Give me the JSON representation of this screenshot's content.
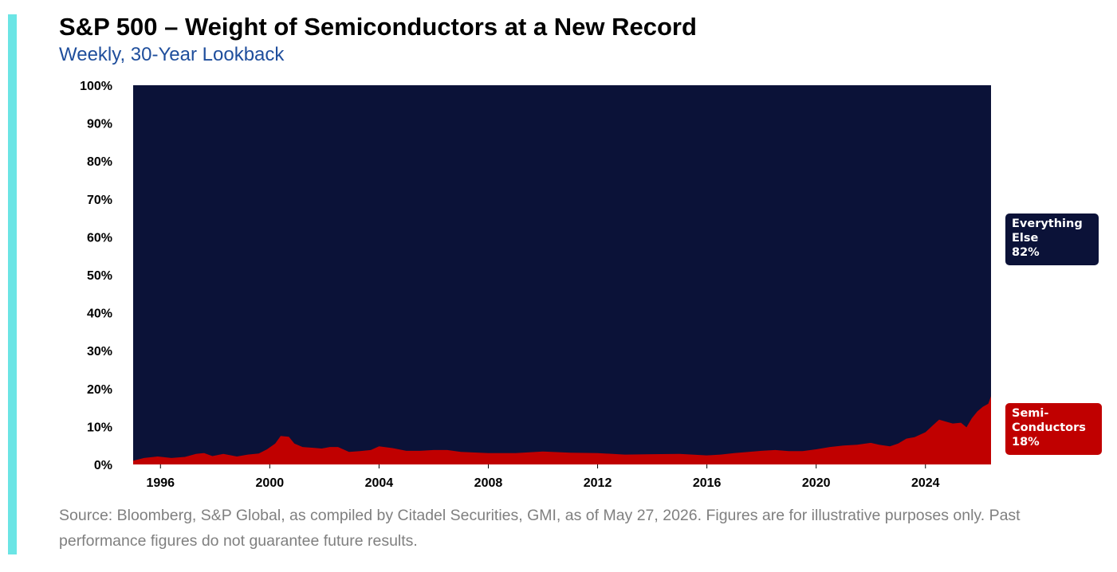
{
  "title": "S&P 500 – Weight of Semiconductors at a New Record",
  "subtitle": "Weekly, 30-Year Lookback",
  "source": "Source: Bloomberg, S&P Global, as compiled by Citadel Securities, GMI, as of May 27, 2026. Figures are for illustrative purposes only. Past performance figures do not guarantee future results.",
  "colors": {
    "accent_bar": "#6be5e5",
    "subtitle": "#1f4e9c",
    "everything_else": "#0b1238",
    "semiconductors": "#c00000"
  },
  "callouts": {
    "everything_else": [
      "Everything",
      "Else",
      "82%"
    ],
    "semiconductors": [
      "Semi-",
      "Conductors",
      "18%"
    ]
  },
  "chart_data": {
    "type": "area",
    "stacked": true,
    "normalized": true,
    "title": "S&P 500 – Weight of Semiconductors at a New Record",
    "subtitle": "Weekly, 30-Year Lookback",
    "xlabel": "",
    "ylabel": "",
    "xlim": [
      1995.0,
      2026.4
    ],
    "ylim": [
      0,
      100
    ],
    "x_ticks": [
      1996,
      2000,
      2004,
      2008,
      2012,
      2016,
      2020,
      2024
    ],
    "y_ticks": [
      0,
      10,
      20,
      30,
      40,
      50,
      60,
      70,
      80,
      90,
      100
    ],
    "y_tick_labels": [
      "0%",
      "10%",
      "20%",
      "30%",
      "40%",
      "50%",
      "60%",
      "70%",
      "80%",
      "90%",
      "100%"
    ],
    "grid": false,
    "legend": "right-side callout labels",
    "x": [
      1995.0,
      1995.4,
      1995.9,
      1996.4,
      1996.9,
      1997.3,
      1997.6,
      1997.9,
      1998.3,
      1998.8,
      1999.2,
      1999.6,
      1999.9,
      2000.2,
      2000.4,
      2000.7,
      2000.9,
      2001.2,
      2001.6,
      2001.9,
      2002.2,
      2002.5,
      2002.9,
      2003.3,
      2003.7,
      2004.0,
      2004.5,
      2005.0,
      2005.5,
      2006.0,
      2006.5,
      2007.0,
      2008.0,
      2009.0,
      2009.5,
      2010.0,
      2011.0,
      2012.0,
      2013.0,
      2014.0,
      2015.0,
      2016.0,
      2016.5,
      2017.0,
      2018.0,
      2018.5,
      2019.0,
      2019.5,
      2020.0,
      2020.5,
      2021.0,
      2021.5,
      2022.0,
      2022.3,
      2022.7,
      2023.0,
      2023.3,
      2023.6,
      2024.0,
      2024.3,
      2024.5,
      2024.8,
      2025.0,
      2025.3,
      2025.5,
      2025.7,
      2025.9,
      2026.1,
      2026.3,
      2026.4
    ],
    "series": [
      {
        "name": "Semi-Conductors",
        "values": [
          1.0,
          1.7,
          2.1,
          1.7,
          2.0,
          2.8,
          3.0,
          2.2,
          2.8,
          2.1,
          2.6,
          2.9,
          4.0,
          5.5,
          7.5,
          7.3,
          5.5,
          4.6,
          4.4,
          4.2,
          4.6,
          4.6,
          3.3,
          3.5,
          3.8,
          4.8,
          4.3,
          3.6,
          3.6,
          3.8,
          3.8,
          3.3,
          3.0,
          3.0,
          3.2,
          3.4,
          3.1,
          3.0,
          2.6,
          2.7,
          2.8,
          2.4,
          2.6,
          3.0,
          3.6,
          3.8,
          3.5,
          3.5,
          4.0,
          4.6,
          5.0,
          5.2,
          5.7,
          5.2,
          4.8,
          5.5,
          6.8,
          7.2,
          8.5,
          10.5,
          11.8,
          11.2,
          10.8,
          11.0,
          9.8,
          12.2,
          14.0,
          15.2,
          16.0,
          18.0
        ]
      },
      {
        "name": "Everything Else",
        "values": [
          99.0,
          98.3,
          97.9,
          98.3,
          98.0,
          97.2,
          97.0,
          97.8,
          97.2,
          97.9,
          97.4,
          97.1,
          96.0,
          94.5,
          92.5,
          92.7,
          94.5,
          95.4,
          95.6,
          95.8,
          95.4,
          95.4,
          96.7,
          96.5,
          96.2,
          95.2,
          95.7,
          96.4,
          96.4,
          96.2,
          96.2,
          96.7,
          97.0,
          97.0,
          96.8,
          96.6,
          96.9,
          97.0,
          97.4,
          97.3,
          97.2,
          97.6,
          97.4,
          97.0,
          96.4,
          96.2,
          96.5,
          96.5,
          96.0,
          95.4,
          95.0,
          94.8,
          94.3,
          94.8,
          95.2,
          94.5,
          93.2,
          92.8,
          91.5,
          89.5,
          88.2,
          88.8,
          89.2,
          89.0,
          90.2,
          87.8,
          86.0,
          84.8,
          84.0,
          82.0
        ]
      }
    ]
  }
}
